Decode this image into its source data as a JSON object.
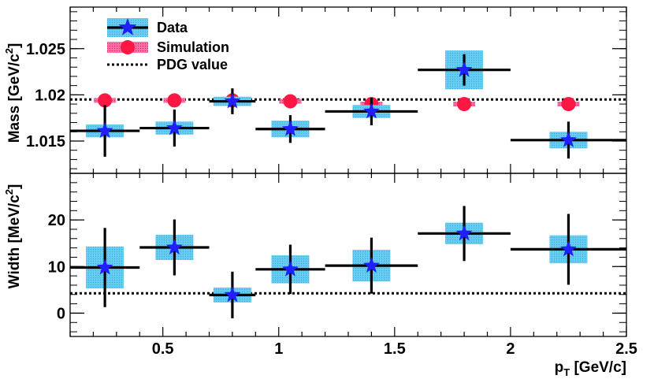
{
  "chart_data": [
    {
      "type": "scatter",
      "panel": "mass",
      "ylabel": "Mass [GeV/c²]",
      "ylim": [
        1.0115,
        1.0295
      ],
      "xlim": [
        0.1,
        2.5
      ],
      "yticks": [
        1.015,
        1.02,
        1.025
      ],
      "ytick_labels": [
        "1.015",
        "1.02",
        "1.025"
      ],
      "reference_line": {
        "name": "PDG value",
        "value": 1.0195
      },
      "series": [
        {
          "name": "Data",
          "points": [
            {
              "x": 0.25,
              "xlow": 0.1,
              "xhigh": 0.4,
              "y": 1.0161,
              "stat": 2.8,
              "sys": 0.7
            },
            {
              "x": 0.55,
              "xlow": 0.4,
              "xhigh": 0.7,
              "y": 1.0164,
              "stat": 2.0,
              "sys": 0.7
            },
            {
              "x": 0.8,
              "xlow": 0.7,
              "xhigh": 0.9,
              "y": 1.0193,
              "stat": 1.4,
              "sys": 0.5
            },
            {
              "x": 1.05,
              "xlow": 0.9,
              "xhigh": 1.2,
              "y": 1.0163,
              "stat": 1.5,
              "sys": 0.9
            },
            {
              "x": 1.4,
              "xlow": 1.2,
              "xhigh": 1.6,
              "y": 1.0182,
              "stat": 1.5,
              "sys": 0.7
            },
            {
              "x": 1.8,
              "xlow": 1.6,
              "xhigh": 2.0,
              "y": 1.0227,
              "stat": 1.7,
              "sys": 2.1
            },
            {
              "x": 2.25,
              "xlow": 2.0,
              "xhigh": 2.5,
              "y": 1.0151,
              "stat": 2.0,
              "sys": 0.9
            }
          ]
        },
        {
          "name": "Simulation",
          "points": [
            {
              "x": 0.25,
              "xlow": 0.1,
              "xhigh": 0.4,
              "y": 1.0194
            },
            {
              "x": 0.55,
              "xlow": 0.4,
              "xhigh": 0.7,
              "y": 1.0194
            },
            {
              "x": 0.8,
              "xlow": 0.7,
              "xhigh": 0.9,
              "y": 1.0194
            },
            {
              "x": 1.05,
              "xlow": 0.9,
              "xhigh": 1.2,
              "y": 1.0193
            },
            {
              "x": 1.4,
              "xlow": 1.2,
              "xhigh": 1.6,
              "y": 1.019
            },
            {
              "x": 1.8,
              "xlow": 1.6,
              "xhigh": 2.0,
              "y": 1.019
            },
            {
              "x": 2.25,
              "xlow": 2.0,
              "xhigh": 2.5,
              "y": 1.019
            }
          ]
        }
      ]
    },
    {
      "type": "scatter",
      "panel": "width",
      "ylabel": "Width [MeV/c²]",
      "xlabel": "pT [GeV/c]",
      "ylim": [
        -5,
        30
      ],
      "xlim": [
        0.1,
        2.5
      ],
      "yticks": [
        0,
        10,
        20
      ],
      "ytick_labels": [
        "0",
        "10",
        "20"
      ],
      "xticks": [
        0.5,
        1,
        1.5,
        2,
        2.5
      ],
      "xtick_labels": [
        "0.5",
        "1",
        "1.5",
        "2",
        "2.5"
      ],
      "reference_line": {
        "name": "PDG value",
        "value": 4.25
      },
      "series": [
        {
          "name": "Data",
          "points": [
            {
              "x": 0.25,
              "xlow": 0.1,
              "xhigh": 0.4,
              "y": 9.8,
              "stat": 8.5,
              "sys": 4.5
            },
            {
              "x": 0.55,
              "xlow": 0.4,
              "xhigh": 0.7,
              "y": 14.1,
              "stat": 6.0,
              "sys": 2.7
            },
            {
              "x": 0.8,
              "xlow": 0.7,
              "xhigh": 0.9,
              "y": 3.9,
              "stat": 5.0,
              "sys": 1.6
            },
            {
              "x": 1.05,
              "xlow": 0.9,
              "xhigh": 1.2,
              "y": 9.4,
              "stat": 5.3,
              "sys": 3.0
            },
            {
              "x": 1.4,
              "xlow": 1.2,
              "xhigh": 1.6,
              "y": 10.2,
              "stat": 6.0,
              "sys": 3.4
            },
            {
              "x": 1.8,
              "xlow": 1.6,
              "xhigh": 2.0,
              "y": 17.1,
              "stat": 5.9,
              "sys": 2.3
            },
            {
              "x": 2.25,
              "xlow": 2.0,
              "xhigh": 2.5,
              "y": 13.7,
              "stat": 7.6,
              "sys": 3.0
            }
          ]
        }
      ]
    }
  ],
  "legend": {
    "data_label": "Data",
    "simulation_label": "Simulation",
    "pdg_label": "PDG value"
  },
  "labels": {
    "mass_ylabel_text": "Mass [GeV/c",
    "mass_ylabel_sup": "2",
    "mass_ylabel_end": "]",
    "width_ylabel_text": "Width [MeV/c",
    "width_ylabel_sup": "2",
    "width_ylabel_end": "]",
    "xlabel_main": "p",
    "xlabel_sub": "T",
    "xlabel_end": " [GeV/c]"
  },
  "colors": {
    "data_marker": "#1f1fff",
    "sys_box": "#66ccf0",
    "sim_marker": "#ff1744",
    "sim_band": "#ff4d8f",
    "line": "#000000"
  }
}
